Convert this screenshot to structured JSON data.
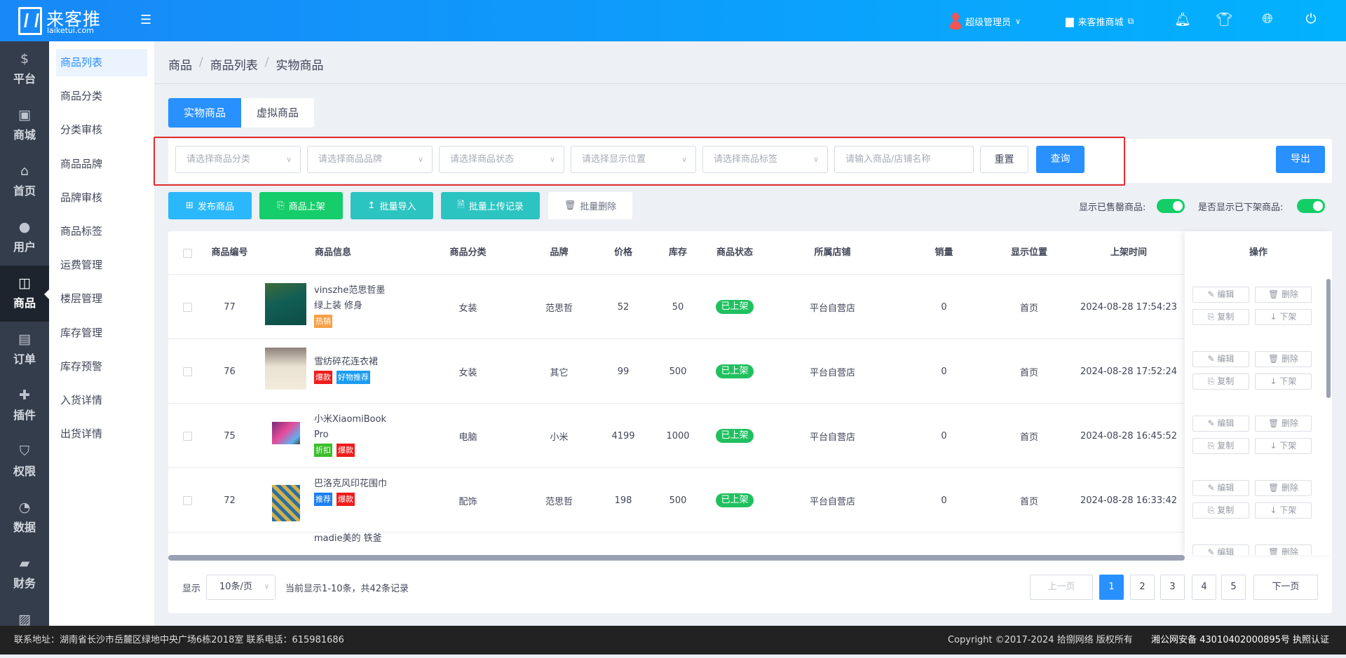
{
  "header": {
    "logo_text": "来客推",
    "logo_sub": "laiketui.com",
    "user_label": "超级管理员",
    "store_label": "来客推商城",
    "brand_color": "#1888f8",
    "icons": [
      "menu-toggle-icon",
      "user-icon",
      "store-icon",
      "bell-icon",
      "shirt-icon",
      "globe-icon",
      "power-icon"
    ]
  },
  "nav": {
    "items": [
      {
        "label": "平台",
        "icon": "platform-icon"
      },
      {
        "label": "商城",
        "icon": "mall-icon"
      },
      {
        "label": "首页",
        "icon": "home-icon"
      },
      {
        "label": "用户",
        "icon": "user-icon"
      },
      {
        "label": "商品",
        "icon": "bag-icon",
        "active": true
      },
      {
        "label": "订单",
        "icon": "clipboard-icon"
      },
      {
        "label": "插件",
        "icon": "puzzle-icon"
      },
      {
        "label": "权限",
        "icon": "shield-icon"
      },
      {
        "label": "数据",
        "icon": "pie-chart-icon"
      },
      {
        "label": "财务",
        "icon": "wallet-icon"
      },
      {
        "label": "",
        "icon": "image-icon"
      }
    ]
  },
  "submenu": {
    "items": [
      "商品列表",
      "商品分类",
      "分类审核",
      "商品品牌",
      "品牌审核",
      "商品标签",
      "运费管理",
      "楼层管理",
      "库存管理",
      "库存预警",
      "入货详情",
      "出货详情"
    ]
  },
  "breadcrumb": [
    "商品",
    "商品列表",
    "实物商品"
  ],
  "tabs": [
    {
      "label": "实物商品",
      "active": true
    },
    {
      "label": "虚拟商品"
    }
  ],
  "filters": {
    "category_placeholder": "请选择商品分类",
    "brand_placeholder": "请选择商品品牌",
    "status_placeholder": "请选择商品状态",
    "position_placeholder": "请选择显示位置",
    "tag_placeholder": "请选择商品标签",
    "keyword_placeholder": "请输入商品/店铺名称",
    "reset": "重置",
    "query": "查询",
    "export": "导出"
  },
  "actions": {
    "publish": "发布商品",
    "shelve": "商品上架",
    "import": "批量导入",
    "upload_log": "批量上传记录",
    "batch_delete": "批量删除"
  },
  "toggles": {
    "sold_out_label": "显示已售罄商品:",
    "sold_out_on": true,
    "off_shelf_label": "是否显示已下架商品:",
    "off_shelf_on": true
  },
  "table": {
    "columns": [
      "商品编号",
      "商品信息",
      "商品分类",
      "品牌",
      "价格",
      "库存",
      "商品状态",
      "所属店铺",
      "销量",
      "显示位置",
      "上架时间",
      "操作"
    ],
    "op_labels": {
      "edit": "编辑",
      "delete": "删除",
      "copy": "复制",
      "unshelve": "下架"
    },
    "rows": [
      {
        "id": "77",
        "name": "vinszhe范思哲墨绿上装 修身",
        "tags": [
          {
            "text": "热销",
            "color": "#f7a046"
          }
        ],
        "category": "女装",
        "brand": "范思哲",
        "price": "52",
        "stock": "50",
        "status": "已上架",
        "store": "平台自营店",
        "sales": "0",
        "position": "首页",
        "time": "2024-08-28 17:54:23"
      },
      {
        "id": "76",
        "name": "雪纺碎花连衣裙",
        "tags": [
          {
            "text": "爆款",
            "color": "#ee1c1c"
          },
          {
            "text": "好物推荐",
            "color": "#1a9cf0"
          }
        ],
        "category": "女装",
        "brand": "其它",
        "price": "99",
        "stock": "500",
        "status": "已上架",
        "store": "平台自营店",
        "sales": "0",
        "position": "首页",
        "time": "2024-08-28 17:52:24"
      },
      {
        "id": "75",
        "name": "小米XiaomiBook Pro",
        "tags": [
          {
            "text": "折扣",
            "color": "#3bbe2d"
          },
          {
            "text": "爆款",
            "color": "#ee1c1c"
          }
        ],
        "category": "电脑",
        "brand": "小米",
        "price": "4199",
        "stock": "1000",
        "status": "已上架",
        "store": "平台自营店",
        "sales": "0",
        "position": "首页",
        "time": "2024-08-28 16:45:52"
      },
      {
        "id": "72",
        "name": "巴洛克风印花围巾",
        "tags": [
          {
            "text": "推荐",
            "color": "#1a7ff0"
          },
          {
            "text": "爆款",
            "color": "#ee1c1c"
          }
        ],
        "category": "配饰",
        "brand": "范思哲",
        "price": "198",
        "stock": "500",
        "status": "已上架",
        "store": "平台自营店",
        "sales": "0",
        "position": "首页",
        "time": "2024-08-28 16:33:42"
      },
      {
        "id": "",
        "name": "madie美的 铁釜",
        "tags": [],
        "category": "",
        "brand": "",
        "price": "",
        "stock": "",
        "status": "",
        "store": "",
        "sales": "",
        "position": "",
        "time": ""
      }
    ]
  },
  "pagination": {
    "show_label": "显示",
    "page_size": "10条/页",
    "summary": "当前显示1-10条，共42条记录",
    "prev": "上一页",
    "next": "下一页",
    "pages": [
      "1",
      "2",
      "3",
      "4",
      "5"
    ],
    "current": "1"
  },
  "footer": {
    "address": "联系地址：湖南省长沙市岳麓区绿地中央广场6栋2018室 联系电话：615981686",
    "copyright": "Copyright ©2017-2024 拾捌网络 版权所有",
    "icp": "湘公网安备 43010402000895号 执照认证"
  }
}
